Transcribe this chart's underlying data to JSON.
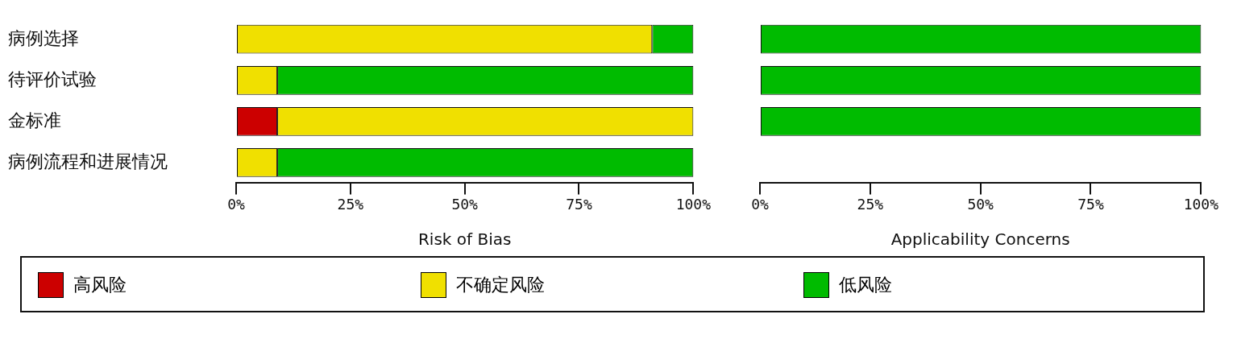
{
  "chart_data": [
    {
      "type": "bar",
      "orientation": "horizontal",
      "stacked": true,
      "xlabel": "Risk of Bias",
      "categories": [
        "病例选择",
        "待评价试验",
        "金标准",
        "病例流程和进展情况"
      ],
      "series": [
        {
          "name": "高风险",
          "color": "#cc0000",
          "values": [
            0,
            0,
            9,
            0
          ]
        },
        {
          "name": "不确定风险",
          "color": "#f0e000",
          "values": [
            91,
            9,
            91,
            9
          ]
        },
        {
          "name": "低风险",
          "color": "#00bb00",
          "values": [
            9,
            91,
            0,
            91
          ]
        }
      ],
      "xlim": [
        0,
        100
      ],
      "xticks": [
        {
          "value": 0,
          "label": "0%"
        },
        {
          "value": 25,
          "label": "25%"
        },
        {
          "value": 50,
          "label": "50%"
        },
        {
          "value": 75,
          "label": "75%"
        },
        {
          "value": 100,
          "label": "100%"
        }
      ],
      "grid": false,
      "legend": "bottom"
    },
    {
      "type": "bar",
      "orientation": "horizontal",
      "stacked": true,
      "xlabel": "Applicability Concerns",
      "categories": [
        null,
        null,
        null,
        null
      ],
      "series": [
        {
          "color": "#cc0000",
          "values": [
            0,
            0,
            0,
            null
          ]
        },
        {
          "color": "#f0e000",
          "values": [
            0,
            0,
            0,
            null
          ]
        },
        {
          "color": "#00bb00",
          "values": [
            100,
            100,
            100,
            null
          ]
        }
      ],
      "xlim": [
        0,
        100
      ],
      "xticks": [
        {
          "value": 0,
          "label": "0%"
        },
        {
          "value": 25,
          "label": "25%"
        },
        {
          "value": 50,
          "label": "50%"
        },
        {
          "value": 75,
          "label": "75%"
        },
        {
          "value": 100,
          "label": "100%"
        }
      ],
      "grid": false,
      "tick_labels": "x"
    }
  ]
}
